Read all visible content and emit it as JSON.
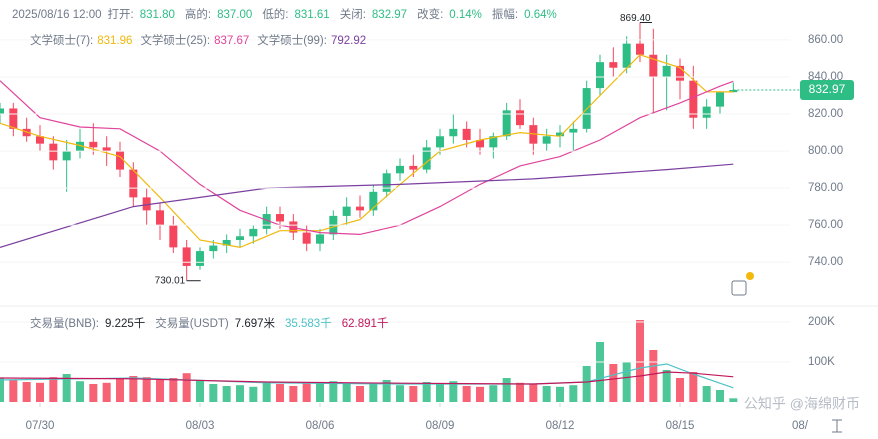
{
  "chart_data": [
    {
      "type": "candlestick",
      "info": [
        {
          "label": "2025/08/16 12:00"
        },
        {
          "label": "打开:",
          "value": "831.80"
        },
        {
          "label": "高的:",
          "value": "837.00"
        },
        {
          "label": "低的:",
          "value": "831.61"
        },
        {
          "label": "关闭:",
          "value": "832.97"
        },
        {
          "label": "改变:",
          "value": "0.14%"
        },
        {
          "label": "振幅:",
          "value": "0.64%"
        }
      ],
      "open": [
        820,
        823,
        812,
        808,
        804,
        795,
        800,
        805,
        802,
        800,
        790,
        775,
        768,
        760,
        748,
        738,
        746,
        749,
        752,
        754,
        758,
        766,
        762,
        756,
        750,
        755,
        765,
        770,
        768,
        778,
        788,
        792,
        790,
        802,
        808,
        812,
        806,
        802,
        808,
        822,
        814,
        804,
        808,
        810,
        812,
        834,
        848,
        845,
        858,
        852,
        840,
        846,
        838,
        818,
        824,
        831.8
      ],
      "high": [
        826,
        826,
        818,
        814,
        808,
        806,
        812,
        815,
        808,
        805,
        794,
        780,
        772,
        765,
        752,
        748,
        752,
        755,
        758,
        760,
        770,
        770,
        766,
        760,
        758,
        768,
        775,
        776,
        782,
        790,
        796,
        798,
        806,
        812,
        820,
        816,
        812,
        810,
        826,
        828,
        818,
        812,
        814,
        816,
        838,
        852,
        856,
        862,
        869.4,
        866,
        852,
        850,
        846,
        828,
        832,
        837
      ],
      "low": [
        815,
        808,
        805,
        800,
        790,
        778,
        796,
        798,
        792,
        786,
        770,
        760,
        752,
        745,
        730.01,
        736,
        742,
        745,
        748,
        750,
        755,
        758,
        752,
        746,
        746,
        752,
        760,
        764,
        765,
        775,
        784,
        786,
        788,
        798,
        804,
        802,
        798,
        796,
        806,
        812,
        798,
        800,
        802,
        800,
        810,
        830,
        840,
        842,
        848,
        820,
        822,
        828,
        812,
        812,
        820,
        831.61
      ],
      "close": [
        823,
        812,
        808,
        804,
        795,
        800,
        805,
        802,
        800,
        790,
        775,
        768,
        760,
        748,
        738,
        746,
        749,
        752,
        754,
        758,
        766,
        762,
        756,
        750,
        755,
        765,
        770,
        768,
        778,
        788,
        792,
        790,
        802,
        808,
        812,
        806,
        802,
        808,
        822,
        814,
        804,
        808,
        810,
        812,
        834,
        848,
        845,
        858,
        852,
        840,
        846,
        838,
        818,
        824,
        831.8,
        832.97
      ],
      "up_color": "#2ebd85",
      "down_color": "#f6465d",
      "series": [
        {
          "name": "文学硕士(7):",
          "color": "#f0b90b",
          "x": [
            0,
            3,
            6,
            9,
            12,
            15,
            18,
            21,
            24,
            27,
            30,
            33,
            36,
            39,
            42,
            45,
            48,
            51,
            53,
            55
          ],
          "values": [
            815,
            808,
            803,
            797,
            775,
            752,
            748,
            757,
            757,
            763,
            782,
            800,
            806,
            810,
            808,
            830,
            852,
            845,
            832,
            831.96
          ]
        },
        {
          "name": "文学硕士(25):",
          "color": "#e0449b",
          "x": [
            0,
            3,
            6,
            9,
            12,
            15,
            18,
            21,
            24,
            27,
            30,
            33,
            36,
            39,
            42,
            45,
            48,
            51,
            54,
            55
          ],
          "values": [
            838,
            818,
            813,
            812,
            800,
            782,
            768,
            760,
            756,
            755,
            760,
            770,
            782,
            792,
            797,
            806,
            818,
            826,
            835,
            837.67
          ]
        },
        {
          "name": "文学硕士(99):",
          "color": "#7b3fa0",
          "x": [
            0,
            10,
            20,
            30,
            40,
            50,
            55
          ],
          "values": [
            748,
            770,
            780,
            782,
            785,
            790,
            792.92
          ]
        }
      ],
      "annotations": [
        {
          "text": "869.40",
          "x": 48,
          "value": 869.4
        },
        {
          "text": "730.01",
          "x": 14,
          "value": 730.01
        }
      ],
      "xlim": [
        0,
        59.25
      ],
      "ylim": [
        725,
        874
      ],
      "yticks": [
        {
          "value": 860,
          "label": "860.00"
        },
        {
          "value": 840,
          "label": "840.00"
        },
        {
          "value": 820,
          "label": "820.00"
        },
        {
          "value": 800,
          "label": "800.00"
        },
        {
          "value": 780,
          "label": "780.00"
        },
        {
          "value": 760,
          "label": "760.00"
        },
        {
          "value": 740,
          "label": "740.00"
        }
      ]
    },
    {
      "type": "volume",
      "legend_items": [
        {
          "label": "交易量(BNB):",
          "value": "9.225千"
        },
        {
          "label": "交易量(USDT)",
          "value": "7.697米"
        },
        {
          "value": "35.583千",
          "color": "#4cc3c7"
        },
        {
          "value": "62.891千",
          "color": "#c2185b"
        }
      ],
      "values": [
        60,
        55,
        50,
        48,
        62,
        70,
        52,
        45,
        48,
        58,
        65,
        62,
        58,
        60,
        72,
        55,
        45,
        40,
        42,
        38,
        50,
        45,
        40,
        48,
        50,
        52,
        45,
        40,
        48,
        55,
        42,
        40,
        50,
        45,
        52,
        40,
        38,
        42,
        60,
        48,
        45,
        40,
        38,
        42,
        90,
        150,
        95,
        100,
        205,
        130,
        80,
        60,
        75,
        40,
        30,
        9.225
      ],
      "series": [
        {
          "color": "#4cc3c7",
          "x": [
            0,
            10,
            20,
            30,
            40,
            44,
            48,
            50,
            52,
            55
          ],
          "values": [
            55,
            60,
            48,
            45,
            45,
            50,
            85,
            95,
            70,
            35.583
          ]
        },
        {
          "color": "#c2185b",
          "x": [
            0,
            10,
            20,
            30,
            40,
            44,
            48,
            50,
            52,
            55
          ],
          "values": [
            60,
            58,
            50,
            47,
            45,
            50,
            65,
            75,
            72,
            62.891
          ]
        }
      ],
      "xlim": [
        0,
        59.25
      ],
      "ylim": [
        0,
        230
      ],
      "yticks": [
        {
          "value": 200,
          "label": "200K"
        },
        {
          "value": 100,
          "label": "100K"
        }
      ],
      "xticks": [
        {
          "value": 3,
          "label": "07/30"
        },
        {
          "value": 15,
          "label": "08/03"
        },
        {
          "value": 24,
          "label": "08/06"
        },
        {
          "value": 33,
          "label": "08/09"
        },
        {
          "value": 42,
          "label": "08/12"
        },
        {
          "value": 51,
          "label": "08/15"
        },
        {
          "value": 60,
          "label": "08/"
        }
      ]
    }
  ],
  "watermark": "公知乎 @海绵财币"
}
